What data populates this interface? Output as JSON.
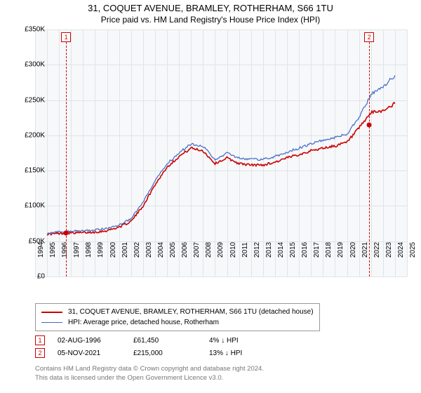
{
  "title_line1": "31, COQUET AVENUE, BRAMLEY, ROTHERHAM, S66 1TU",
  "title_line2": "Price paid vs. HM Land Registry's House Price Index (HPI)",
  "chart": {
    "type": "line",
    "background_color": "#f6f8fa",
    "grid_color": "#e1e4e8",
    "x_years": [
      1994,
      1995,
      1996,
      1997,
      1998,
      1999,
      2000,
      2001,
      2002,
      2003,
      2004,
      2005,
      2006,
      2007,
      2008,
      2009,
      2010,
      2011,
      2012,
      2013,
      2014,
      2015,
      2016,
      2017,
      2018,
      2019,
      2020,
      2021,
      2022,
      2023,
      2024,
      2025
    ],
    "y_ticks": [
      0,
      50000,
      100000,
      150000,
      200000,
      250000,
      300000,
      350000
    ],
    "y_tick_labels": [
      "£0",
      "£50K",
      "£100K",
      "£150K",
      "£200K",
      "£250K",
      "£300K",
      "£350K"
    ],
    "ylim": [
      0,
      350000
    ],
    "series": [
      {
        "name": "31, COQUET AVENUE, BRAMLEY, ROTHERHAM, S66 1TU (detached house)",
        "color": "#cc0000",
        "line_width": 1.6,
        "values_by_year": {
          "1995": 60000,
          "1996": 61000,
          "1997": 62000,
          "1998": 62000,
          "1999": 63000,
          "2000": 65000,
          "2001": 70000,
          "2002": 78000,
          "2003": 100000,
          "2004": 130000,
          "2005": 155000,
          "2006": 170000,
          "2007": 182000,
          "2008": 178000,
          "2009": 160000,
          "2010": 168000,
          "2011": 160000,
          "2012": 158000,
          "2013": 158000,
          "2014": 162000,
          "2015": 168000,
          "2016": 173000,
          "2017": 178000,
          "2018": 182000,
          "2019": 185000,
          "2020": 190000,
          "2021": 210000,
          "2022": 232000,
          "2023": 235000,
          "2024": 245000
        }
      },
      {
        "name": "HPI: Average price, detached house, Rotherham",
        "color": "#4169c4",
        "line_width": 1.2,
        "values_by_year": {
          "1995": 62000,
          "1996": 63000,
          "1997": 64000,
          "1998": 65000,
          "1999": 66000,
          "2000": 68000,
          "2001": 73000,
          "2002": 82000,
          "2003": 105000,
          "2004": 135000,
          "2005": 160000,
          "2006": 175000,
          "2007": 188000,
          "2008": 185000,
          "2009": 165000,
          "2010": 175000,
          "2011": 168000,
          "2012": 166000,
          "2013": 166000,
          "2014": 170000,
          "2015": 176000,
          "2016": 182000,
          "2017": 188000,
          "2018": 193000,
          "2019": 197000,
          "2020": 202000,
          "2021": 225000,
          "2022": 258000,
          "2023": 268000,
          "2024": 285000
        }
      }
    ]
  },
  "markers": [
    {
      "num": "1",
      "year": 1996.58,
      "price": 61450
    },
    {
      "num": "2",
      "year": 2021.85,
      "price": 215000
    }
  ],
  "legend": {
    "border_color": "#999999",
    "items": [
      {
        "color": "#cc0000",
        "width": 2,
        "label": "31, COQUET AVENUE, BRAMLEY, ROTHERHAM, S66 1TU (detached house)"
      },
      {
        "color": "#4169c4",
        "width": 1.2,
        "label": "HPI: Average price, detached house, Rotherham"
      }
    ]
  },
  "data_rows": [
    {
      "num": "1",
      "date": "02-AUG-1996",
      "price": "£61,450",
      "diff": "4% ↓ HPI"
    },
    {
      "num": "2",
      "date": "05-NOV-2021",
      "price": "£215,000",
      "diff": "13% ↓ HPI"
    }
  ],
  "footer": {
    "line1": "Contains HM Land Registry data © Crown copyright and database right 2024.",
    "line2": "This data is licensed under the Open Government Licence v3.0."
  }
}
